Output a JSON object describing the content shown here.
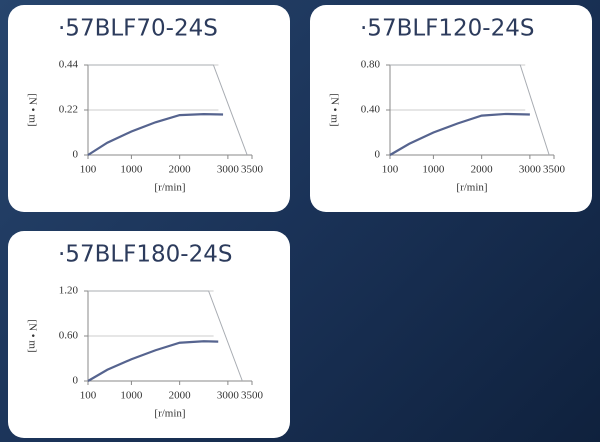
{
  "chart_data": [
    {
      "type": "line",
      "title": "·57BLF70-24S",
      "y_label": "[N • m]",
      "x_label": "[r/min]",
      "xlim": [
        100,
        3500
      ],
      "xticks": [
        100,
        1000,
        2000,
        3000,
        3500
      ],
      "ylim": [
        0,
        0.44
      ],
      "yticks": [
        0,
        0.22,
        0.44
      ],
      "grid": true,
      "series": [
        {
          "color": "#a8acb2",
          "x": [
            100,
            2700,
            3400
          ],
          "values": [
            0.44,
            0.44,
            0
          ]
        },
        {
          "color": "#56648f",
          "x": [
            100,
            500,
            1000,
            1500,
            2000,
            2500,
            2900
          ],
          "values": [
            0,
            0.06,
            0.115,
            0.16,
            0.195,
            0.2,
            0.198
          ]
        }
      ]
    },
    {
      "type": "line",
      "title": "·57BLF120-24S",
      "y_label": "[N • m]",
      "x_label": "[r/min]",
      "xlim": [
        100,
        3500
      ],
      "xticks": [
        100,
        1000,
        2000,
        3000,
        3500
      ],
      "ylim": [
        0,
        0.8
      ],
      "yticks": [
        0,
        {
          "value": 0.4,
          "label": "0.40"
        },
        {
          "value": 0.8,
          "label": "0.80"
        }
      ],
      "grid": true,
      "series": [
        {
          "color": "#a8acb2",
          "x": [
            100,
            2800,
            3400
          ],
          "values": [
            0.8,
            0.8,
            0
          ]
        },
        {
          "color": "#56648f",
          "x": [
            100,
            500,
            1000,
            1500,
            2000,
            2500,
            3000
          ],
          "values": [
            0,
            0.1,
            0.2,
            0.28,
            0.35,
            0.365,
            0.36
          ]
        }
      ]
    },
    {
      "type": "line",
      "title": "·57BLF180-24S",
      "y_label": "[N • m]",
      "x_label": "[r/min]",
      "xlim": [
        100,
        3500
      ],
      "xticks": [
        100,
        1000,
        2000,
        3000,
        3500
      ],
      "ylim": [
        0,
        1.2
      ],
      "yticks": [
        0,
        {
          "value": 0.6,
          "label": "0.60"
        },
        {
          "value": 1.2,
          "label": "1.20"
        }
      ],
      "grid": true,
      "series": [
        {
          "color": "#a8acb2",
          "x": [
            100,
            2600,
            3300
          ],
          "values": [
            1.2,
            1.2,
            0
          ]
        },
        {
          "color": "#56648f",
          "x": [
            100,
            500,
            1000,
            1500,
            2000,
            2500,
            2800
          ],
          "values": [
            0,
            0.15,
            0.29,
            0.41,
            0.51,
            0.53,
            0.525
          ]
        }
      ]
    }
  ]
}
